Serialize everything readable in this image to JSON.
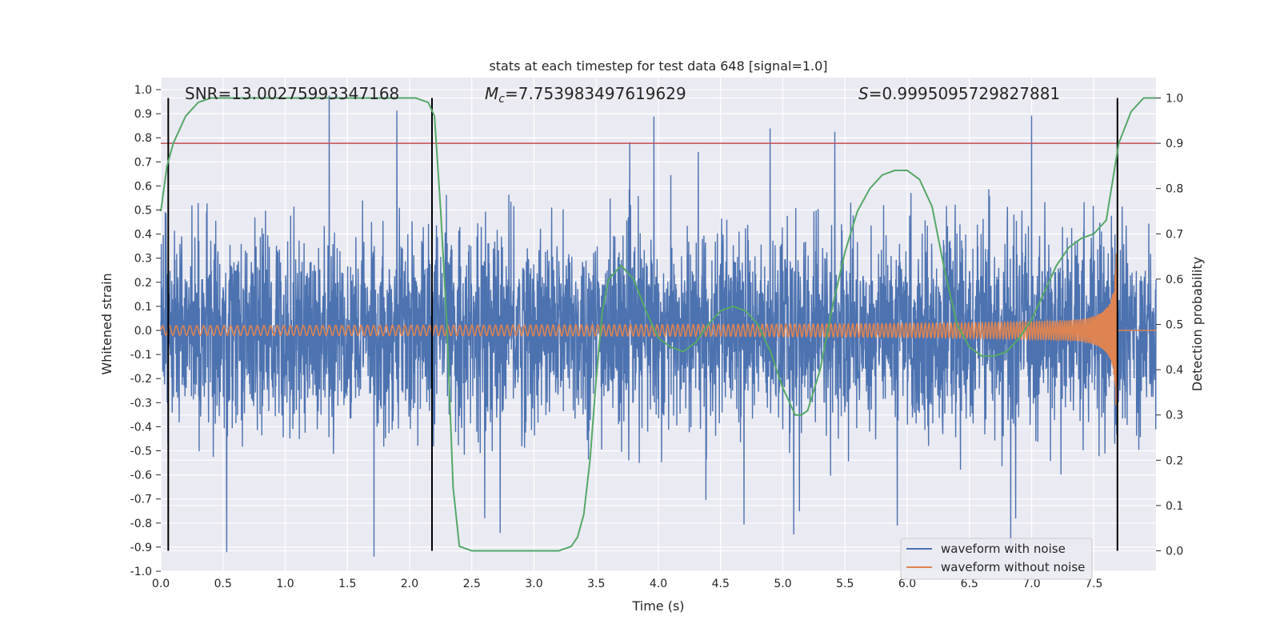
{
  "chart_data": {
    "type": "line",
    "title": "stats at each timestep for test data 648 [signal=1.0]",
    "xlabel": "Time (s)",
    "ylabel": "Whitened strain",
    "y2label": "Detection probability",
    "xlim": [
      0,
      8.0
    ],
    "ylim": [
      -1.0,
      1.05
    ],
    "y2lim": [
      -0.045,
      1.045
    ],
    "xticks": [
      "0.0",
      "0.5",
      "1.0",
      "1.5",
      "2.0",
      "2.5",
      "3.0",
      "3.5",
      "4.0",
      "4.5",
      "5.0",
      "5.5",
      "6.0",
      "6.5",
      "7.0",
      "7.5"
    ],
    "yticks": [
      "1.0",
      "0.9",
      "0.8",
      "0.7",
      "0.6",
      "0.5",
      "0.4",
      "0.3",
      "0.2",
      "0.1",
      "0.0",
      "-0.1",
      "-0.2",
      "-0.3",
      "-0.4",
      "-0.5",
      "-0.6",
      "-0.7",
      "-0.8",
      "-0.9",
      "-1.0"
    ],
    "y2ticks": [
      "1.0",
      "0.9",
      "0.8",
      "0.7",
      "0.6",
      "0.5",
      "0.4",
      "0.3",
      "0.2",
      "0.1",
      "0.0"
    ],
    "annotations": {
      "snr": "SNR=13.00275993347168",
      "mc_symbol": "M",
      "mc_sub": "c",
      "mc_value": "=7.753983497619629",
      "s_symbol": "S",
      "s_value": "=0.9995095729827881"
    },
    "threshold": 0.9,
    "vertical_lines": [
      0.06,
      2.18,
      7.69
    ],
    "legend": {
      "placement": "lower-right",
      "entries": [
        "waveform with noise",
        "waveform without noise"
      ]
    },
    "colors": {
      "noise": "#4c72b0",
      "clean": "#dd8452",
      "probability": "#55a868",
      "threshold": "#c44e52",
      "background": "#eaeaf2",
      "grid": "#ffffff",
      "vline": "#000000"
    },
    "series": [
      {
        "name": "waveform with noise",
        "description": "noisy whitened strain, roughly within ±0.45 with spikes to ±1.0"
      },
      {
        "name": "waveform without noise",
        "chirp": {
          "t_start": 0.0,
          "t_merge": 7.69,
          "amp_start": 0.02,
          "amp_peak": 0.33,
          "f_start": 18,
          "f_end": 60
        }
      },
      {
        "name": "detection probability",
        "axis": "right",
        "x": [
          0.0,
          0.05,
          0.1,
          0.2,
          0.3,
          0.4,
          0.6,
          1.0,
          1.5,
          1.9,
          2.05,
          2.15,
          2.2,
          2.25,
          2.3,
          2.35,
          2.4,
          2.5,
          3.0,
          3.2,
          3.3,
          3.35,
          3.4,
          3.45,
          3.5,
          3.55,
          3.6,
          3.7,
          3.8,
          3.9,
          4.0,
          4.1,
          4.2,
          4.3,
          4.4,
          4.5,
          4.6,
          4.7,
          4.8,
          4.9,
          5.0,
          5.1,
          5.15,
          5.2,
          5.3,
          5.4,
          5.5,
          5.6,
          5.7,
          5.8,
          5.9,
          6.0,
          6.1,
          6.2,
          6.3,
          6.4,
          6.5,
          6.6,
          6.7,
          6.8,
          6.9,
          7.0,
          7.1,
          7.2,
          7.3,
          7.4,
          7.5,
          7.6,
          7.7,
          7.8,
          7.9,
          8.0
        ],
        "values": [
          0.75,
          0.85,
          0.9,
          0.96,
          0.99,
          1.0,
          1.0,
          1.0,
          1.0,
          1.0,
          1.0,
          0.99,
          0.96,
          0.75,
          0.5,
          0.14,
          0.01,
          0.0,
          0.0,
          0.0,
          0.01,
          0.03,
          0.08,
          0.2,
          0.38,
          0.53,
          0.6,
          0.63,
          0.6,
          0.53,
          0.47,
          0.45,
          0.44,
          0.46,
          0.5,
          0.53,
          0.54,
          0.53,
          0.5,
          0.44,
          0.36,
          0.3,
          0.3,
          0.31,
          0.4,
          0.54,
          0.66,
          0.75,
          0.8,
          0.83,
          0.84,
          0.84,
          0.82,
          0.76,
          0.62,
          0.5,
          0.45,
          0.43,
          0.43,
          0.44,
          0.47,
          0.51,
          0.57,
          0.63,
          0.67,
          0.69,
          0.7,
          0.73,
          0.9,
          0.97,
          1.0,
          1.0
        ]
      }
    ]
  }
}
